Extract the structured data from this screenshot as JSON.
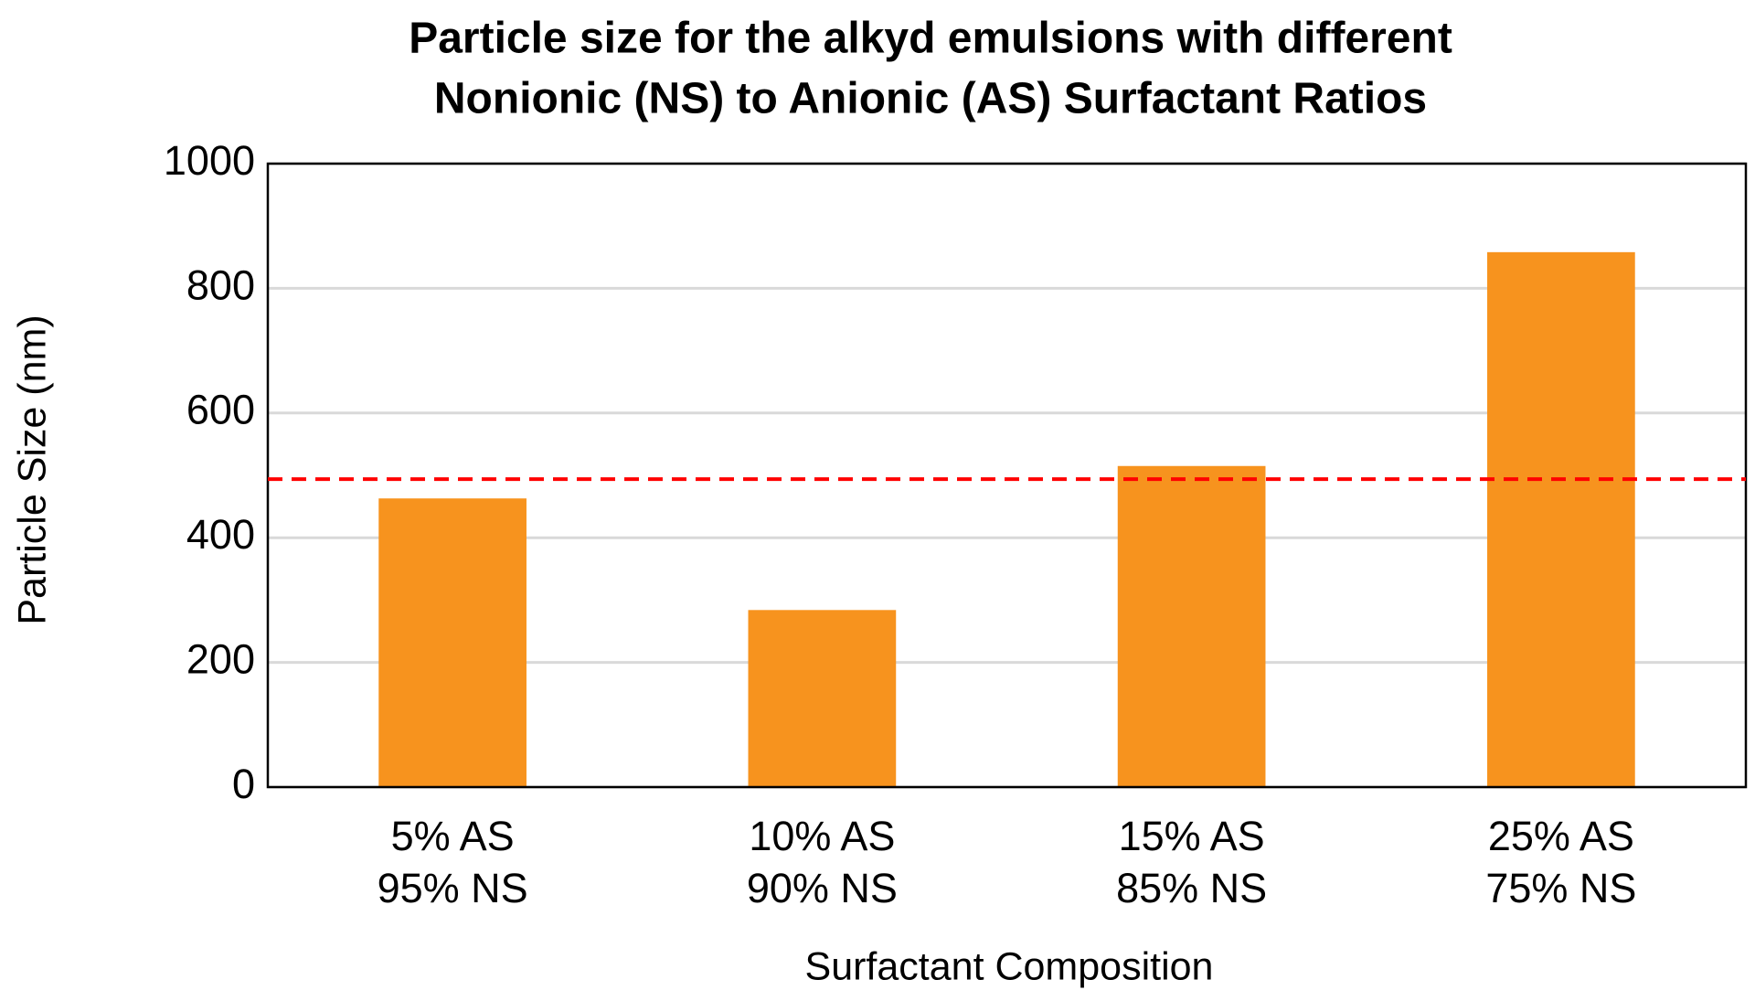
{
  "chart_data": {
    "type": "bar",
    "title": [
      "Particle size for the alkyd emulsions with different",
      "Nonionic (NS) to Anionic (AS) Surfactant Ratios"
    ],
    "x_label": "Surfactant Composition",
    "y_label": "Particle Size (nm)",
    "categories": [
      [
        "5% AS",
        "95% NS"
      ],
      [
        "10% AS",
        "90% NS"
      ],
      [
        "15% AS",
        "85% NS"
      ],
      [
        "25% AS",
        "75% NS"
      ]
    ],
    "values": [
      463,
      284,
      515,
      858
    ],
    "color": "#f7931e",
    "ylim": [
      0,
      1000
    ],
    "yticks": [
      0,
      200,
      400,
      600,
      800,
      1000
    ],
    "grid": true,
    "reference_line": {
      "value": 494,
      "color": "#ff0000"
    }
  }
}
